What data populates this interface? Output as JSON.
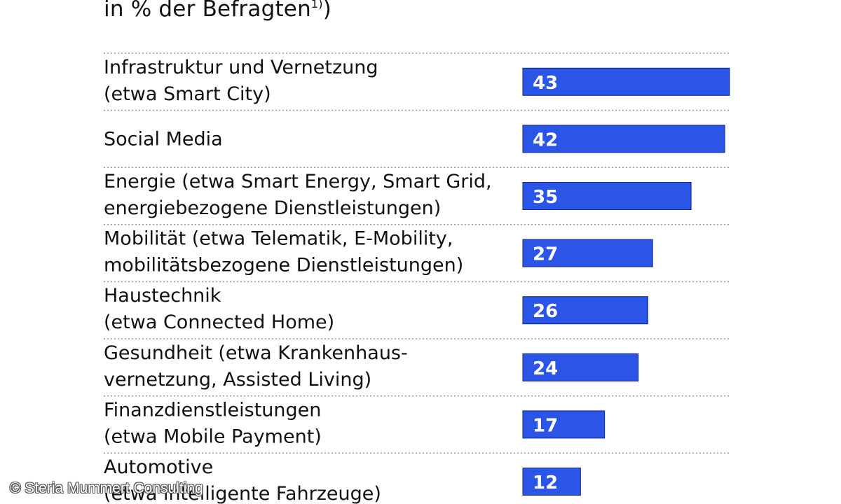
{
  "subtitle": {
    "text": "in % der Befragten",
    "footnote_mark": "1)",
    "closing": ")"
  },
  "chart_data": {
    "type": "bar",
    "orientation": "horizontal",
    "unit": "%",
    "bar_color": "#2b55e6",
    "divider_style": "dotted",
    "categories": [
      [
        "Infrastruktur und Vernetzung",
        "(etwa Smart City)"
      ],
      [
        "Social Media"
      ],
      [
        "Energie (etwa Smart Energy, Smart Grid,",
        "energiebezogene Dienstleistungen)"
      ],
      [
        "Mobilität (etwa Telematik, E-Mobility,",
        "mobilitätsbezogene Dienstleistungen)"
      ],
      [
        "Haustechnik",
        "(etwa Connected Home)"
      ],
      [
        "Gesundheit (etwa Krankenhaus-",
        "vernetzung, Assisted Living)"
      ],
      [
        "Finanzdienstleistungen",
        "(etwa Mobile Payment)"
      ],
      [
        "Automotive",
        "(etwa intelligente Fahrzeuge)"
      ]
    ],
    "values": [
      43,
      42,
      35,
      27,
      26,
      24,
      17,
      12
    ],
    "data_labels": [
      "43",
      "42",
      "35",
      "27",
      "26",
      "24",
      "17",
      "12"
    ],
    "sorted": "descending"
  },
  "copyright": "© Steria Mummert Consulting"
}
